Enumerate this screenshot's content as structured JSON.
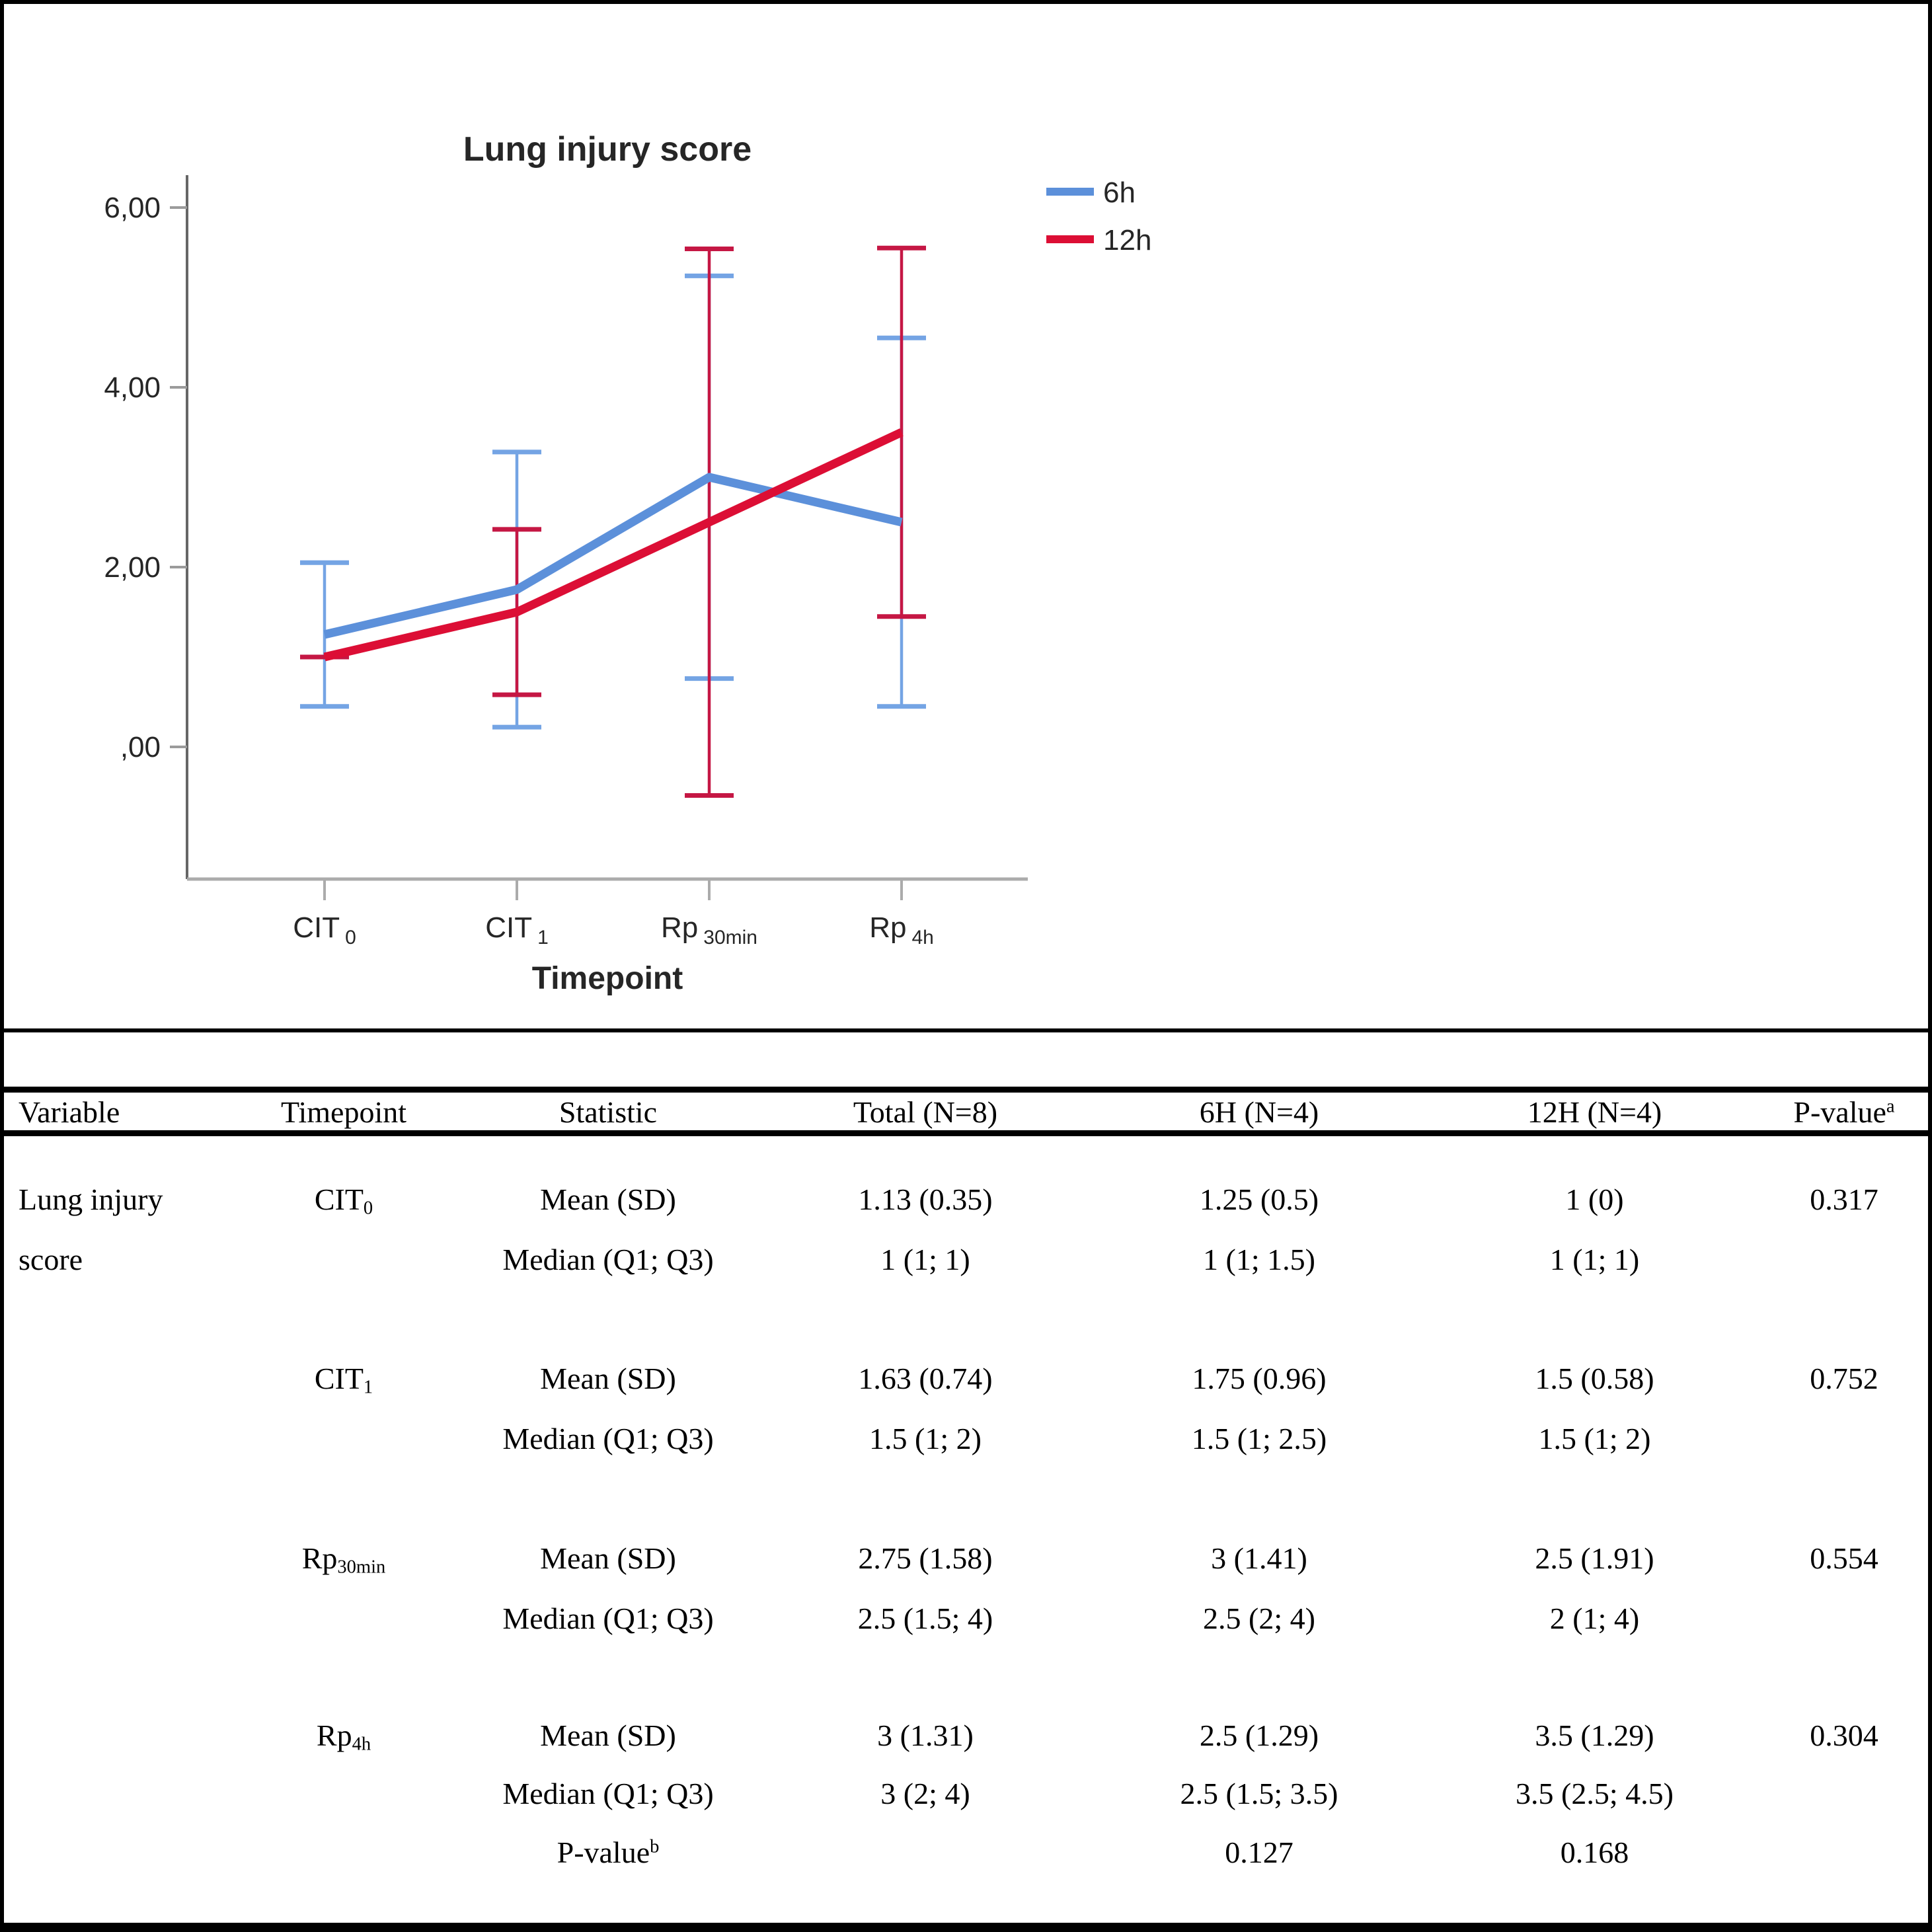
{
  "figure": {
    "background": "#FFFFFF",
    "frame_color": "#000000"
  },
  "chart_data": {
    "type": "line",
    "title": "Lung injury score",
    "x_label": "Timepoint",
    "categories": [
      {
        "base": "CIT",
        "sub": "0"
      },
      {
        "base": "CIT",
        "sub": "1"
      },
      {
        "base": "Rp",
        "sub": "30min"
      },
      {
        "base": "Rp",
        "sub": "4h"
      }
    ],
    "y_ticks": [
      {
        "value": 6,
        "label": "6,00"
      },
      {
        "value": 4,
        "label": "4,00"
      },
      {
        "value": 2,
        "label": "2,00"
      },
      {
        "value": 0,
        "label": ",00"
      }
    ],
    "ylim": [
      -1.4,
      6.35
    ],
    "grid": false,
    "legend_position": "top-right",
    "error_bars": "95% CI of mean",
    "series": [
      {
        "name": "6h",
        "line_color": "#5C90DA",
        "error_color": "#74A4E4",
        "means": [
          1.25,
          1.75,
          3.0,
          2.5
        ],
        "sd": [
          0.5,
          0.96,
          1.41,
          1.29
        ],
        "ci_low": [
          0.45,
          0.22,
          0.76,
          0.45
        ],
        "ci_high": [
          2.05,
          3.28,
          5.24,
          4.55
        ]
      },
      {
        "name": "12h",
        "line_color": "#DC0E35",
        "error_color": "#C51744",
        "means": [
          1.0,
          1.5,
          2.5,
          3.5
        ],
        "sd": [
          0,
          0.58,
          1.91,
          1.29
        ],
        "ci_low": [
          1.0,
          0.58,
          -0.54,
          1.45
        ],
        "ci_high": [
          1.0,
          2.42,
          5.54,
          5.55
        ]
      }
    ]
  },
  "table": {
    "headers": {
      "variable": "Variable",
      "timepoint": "Timepoint",
      "statistic": "Statistic",
      "total": "Total (N=8)",
      "h6": "6H (N=4)",
      "h12": "12H (N=4)",
      "pvalue_base": "P-value",
      "pvalue_sup": "a"
    },
    "variable_line1": "Lung injury",
    "variable_line2": "score",
    "blocks": [
      {
        "timepoint_base": "CIT",
        "timepoint_sub": "0",
        "mean_label": "Mean (SD)",
        "mean_total": "1.13 (0.35)",
        "mean_h6": "1.25 (0.5)",
        "mean_h12": "1 (0)",
        "pvalue": "0.317",
        "median_label": "Median (Q1; Q3)",
        "median_total": "1 (1; 1)",
        "median_h6": "1 (1; 1.5)",
        "median_h12": "1 (1; 1)"
      },
      {
        "timepoint_base": "CIT",
        "timepoint_sub": "1",
        "mean_label": "Mean (SD)",
        "mean_total": "1.63 (0.74)",
        "mean_h6": "1.75 (0.96)",
        "mean_h12": "1.5 (0.58)",
        "pvalue": "0.752",
        "median_label": "Median (Q1; Q3)",
        "median_total": "1.5 (1; 2)",
        "median_h6": "1.5 (1; 2.5)",
        "median_h12": "1.5 (1; 2)"
      },
      {
        "timepoint_base": "Rp",
        "timepoint_sub": "30min",
        "mean_label": "Mean (SD)",
        "mean_total": "2.75 (1.58)",
        "mean_h6": "3 (1.41)",
        "mean_h12": "2.5 (1.91)",
        "pvalue": "0.554",
        "median_label": "Median (Q1; Q3)",
        "median_total": "2.5 (1.5; 4)",
        "median_h6": "2.5 (2; 4)",
        "median_h12": "2 (1; 4)"
      },
      {
        "timepoint_base": "Rp",
        "timepoint_sub": "4h",
        "mean_label": "Mean (SD)",
        "mean_total": "3 (1.31)",
        "mean_h6": "2.5 (1.29)",
        "mean_h12": "3.5 (1.29)",
        "pvalue": "0.304",
        "median_label": "Median (Q1; Q3)",
        "median_total": "3 (2; 4)",
        "median_h6": "2.5 (1.5; 3.5)",
        "median_h12": "3.5 (2.5; 4.5)"
      }
    ],
    "pvalue_b_row": {
      "label_base": "P-value",
      "label_sup": "b",
      "h6": "0.127",
      "h12": "0.168"
    }
  }
}
